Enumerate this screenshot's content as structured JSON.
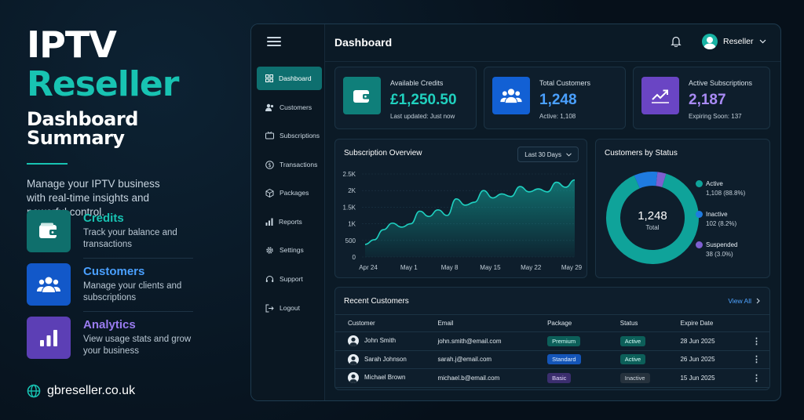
{
  "promo": {
    "title_line1": "IPTV",
    "title_line2": "Reseller",
    "title_line3": "Dashboard Summary",
    "tagline": "Manage your IPTV business with real-time insights and powerful control.",
    "features": [
      {
        "title": "Credits",
        "desc": "Track your balance and transactions",
        "icon": "wallet-icon",
        "color": "#0f6f6c",
        "title_color": "#18c3b2"
      },
      {
        "title": "Customers",
        "desc": "Manage your clients and subscriptions",
        "icon": "users-icon",
        "color": "#1258c9",
        "title_color": "#4aa0ff"
      },
      {
        "title": "Analytics",
        "desc": "View usage stats and grow your business",
        "icon": "bar-chart-icon",
        "color": "#5c3fb5",
        "title_color": "#9a7cf0"
      }
    ],
    "website": "gbreseller.co.uk"
  },
  "sidebar": {
    "items": [
      {
        "label": "Dashboard",
        "icon": "grid-icon",
        "active": true
      },
      {
        "label": "Customers",
        "icon": "users-icon"
      },
      {
        "label": "Subscriptions",
        "icon": "tv-icon"
      },
      {
        "label": "Transactions",
        "icon": "dollar-icon"
      },
      {
        "label": "Packages",
        "icon": "box-icon"
      },
      {
        "label": "Reports",
        "icon": "bar-chart-icon"
      },
      {
        "label": "Settings",
        "icon": "gear-icon"
      },
      {
        "label": "Support",
        "icon": "headset-icon"
      },
      {
        "label": "Logout",
        "icon": "logout-icon"
      }
    ]
  },
  "header": {
    "title": "Dashboard",
    "user_name": "Reseller"
  },
  "stats": [
    {
      "label": "Available Credits",
      "value": "£1,250.50",
      "sub": "Last updated: Just now",
      "icon": "wallet-icon",
      "icon_bg": "#0f7f7a",
      "value_color": "#20d1bf"
    },
    {
      "label": "Total Customers",
      "value": "1,248",
      "sub": "Active: 1,108",
      "icon": "users-icon",
      "icon_bg": "#1260d4",
      "value_color": "#4aa0ff"
    },
    {
      "label": "Active Subscriptions",
      "value": "2,187",
      "sub": "Expiring Soon: 137",
      "icon": "trend-up-icon",
      "icon_bg": "#6a45c4",
      "value_color": "#a98bf5"
    }
  ],
  "overview": {
    "title": "Subscription Overview",
    "range": "Last 30 Days"
  },
  "chart_data": [
    {
      "type": "area",
      "title": "Subscription Overview",
      "x_ticks": [
        "Apr 24",
        "May 1",
        "May 8",
        "May 15",
        "May 22",
        "May 29"
      ],
      "y_ticks": [
        "0",
        "500",
        "1K",
        "1.5K",
        "2K",
        "2.5K"
      ],
      "ylim": [
        0,
        2500
      ],
      "grid": true,
      "series": [
        {
          "values": [
            380,
            520,
            820,
            1020,
            900,
            1000,
            1380,
            1220,
            1420,
            1250,
            1750,
            1560,
            1650,
            2000,
            1780,
            1900,
            1820,
            2120,
            1960,
            2050,
            1960,
            2250,
            2100,
            2320
          ]
        }
      ]
    },
    {
      "type": "pie",
      "title": "Customers by Status",
      "center_value": "1,248",
      "center_label": "Total",
      "slices": [
        {
          "label": "Active",
          "value": 1108,
          "detail": "1,108 (88.8%)",
          "color": "#0fa39a"
        },
        {
          "label": "Inactive",
          "value": 102,
          "detail": "102 (8.2%)",
          "color": "#1f7be0"
        },
        {
          "label": "Suspended",
          "value": 38,
          "detail": "38 (3.0%)",
          "color": "#7e5fd0"
        }
      ]
    }
  ],
  "recent": {
    "title": "Recent Customers",
    "view_all": "View All",
    "columns": [
      "Customer",
      "Email",
      "Package",
      "Status",
      "Expire Date"
    ],
    "rows": [
      {
        "name": "John Smith",
        "email": "john.smith@email.com",
        "package": "Premium",
        "status": "Active",
        "expire": "28 Jun 2025"
      },
      {
        "name": "Sarah Johnson",
        "email": "sarah.j@email.com",
        "package": "Standard",
        "status": "Active",
        "expire": "26 Jun 2025"
      },
      {
        "name": "Michael Brown",
        "email": "michael.b@email.com",
        "package": "Basic",
        "status": "Inactive",
        "expire": "15 Jun 2025"
      }
    ]
  }
}
